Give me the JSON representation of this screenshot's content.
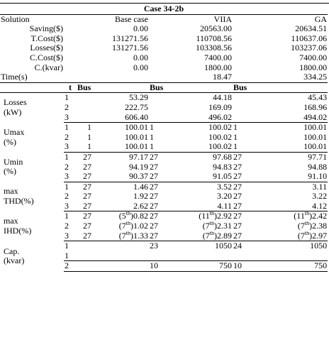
{
  "case_title": "Case 34-2b",
  "summary": {
    "headers": [
      "Solution",
      "Base case",
      "VIIA",
      "GA"
    ],
    "rows": [
      {
        "label": "Saving($)",
        "vals": [
          "0.00",
          "20563.00",
          "20634.51"
        ]
      },
      {
        "label": "T.Cost($)",
        "vals": [
          "131271.56",
          "110708.56",
          "110637.06"
        ]
      },
      {
        "label": "Losses($)",
        "vals": [
          "131271.56",
          "103308.56",
          "103237.06"
        ]
      },
      {
        "label": "C.Cost($)",
        "vals": [
          "0.00",
          "7400.00",
          "7400.00"
        ]
      },
      {
        "label": "C.(kvar)",
        "vals": [
          "0.00",
          "1800.00",
          "1800.00"
        ]
      }
    ],
    "time": {
      "label": "Time(s)",
      "vals": [
        "",
        "18.47",
        "334.25"
      ]
    }
  },
  "detail_headers": {
    "t": "t",
    "bus": "Bus"
  },
  "groups": [
    {
      "label1": "Losses",
      "label2": "(kW)",
      "rows": [
        {
          "t": "1",
          "b1": "",
          "v1": "53.29",
          "b2": "",
          "v2": "44.18",
          "b3": "",
          "v3": "45.43"
        },
        {
          "t": "2",
          "b1": "",
          "v1": "222.75",
          "b2": "",
          "v2": "169.09",
          "b3": "",
          "v3": "168.96"
        },
        {
          "t": "3",
          "b1": "",
          "v1": "606.40",
          "b2": "",
          "v2": "496.02",
          "b3": "",
          "v3": "494.02"
        }
      ]
    },
    {
      "label1": "Umax",
      "label2": "(%)",
      "rows": [
        {
          "t": "1",
          "b1": "1",
          "v1": "100.01",
          "b2": "1",
          "v2": "100.02",
          "b3": "1",
          "v3": "100.01"
        },
        {
          "t": "2",
          "b1": "1",
          "v1": "100.01",
          "b2": "1",
          "v2": "100.02",
          "b3": "1",
          "v3": "100.01"
        },
        {
          "t": "3",
          "b1": "1",
          "v1": "100.01",
          "b2": "1",
          "v2": "100.02",
          "b3": "1",
          "v3": "100.01"
        }
      ]
    },
    {
      "label1": "Umin",
      "label2": "(%)",
      "rows": [
        {
          "t": "1",
          "b1": "27",
          "v1": "97.17",
          "b2": "27",
          "v2": "97.68",
          "b3": "27",
          "v3": "97.71"
        },
        {
          "t": "2",
          "b1": "27",
          "v1": "94.19",
          "b2": "27",
          "v2": "94.83",
          "b3": "27",
          "v3": "94.88"
        },
        {
          "t": "3",
          "b1": "27",
          "v1": "90.37",
          "b2": "27",
          "v2": "91.05",
          "b3": "27",
          "v3": "91.10"
        }
      ]
    },
    {
      "label1": "max",
      "label2": "THD(%)",
      "rows": [
        {
          "t": "1",
          "b1": "27",
          "v1": "1.46",
          "b2": "27",
          "v2": "3.52",
          "b3": "27",
          "v3": "3.11"
        },
        {
          "t": "2",
          "b1": "27",
          "v1": "1.92",
          "b2": "27",
          "v2": "3.20",
          "b3": "27",
          "v3": "3.22"
        },
        {
          "t": "3",
          "b1": "27",
          "v1": "2.62",
          "b2": "27",
          "v2": "4.11",
          "b3": "27",
          "v3": "4.12"
        }
      ]
    },
    {
      "label1": "max",
      "label2": "IHD(%)",
      "rows": [
        {
          "t": "1",
          "b1": "27",
          "h1": [
            "5",
            "0.82"
          ],
          "b2": "27",
          "h2": [
            "11",
            "2.92"
          ],
          "b3": "27",
          "h3": [
            "11",
            "2.42"
          ]
        },
        {
          "t": "2",
          "b1": "27",
          "h1": [
            "7",
            "1.02"
          ],
          "b2": "27",
          "h2": [
            "7",
            "2.31"
          ],
          "b3": "27",
          "h3": [
            "7",
            "2.38"
          ]
        },
        {
          "t": "3",
          "b1": "27",
          "h1": [
            "7",
            "1.33"
          ],
          "b2": "27",
          "h2": [
            "7",
            "2.89"
          ],
          "b3": "27",
          "h3": [
            "7",
            "2.97"
          ]
        }
      ]
    }
  ],
  "cap": {
    "label1": "Cap.",
    "label2": "(kvar)",
    "rows": [
      {
        "t": "1",
        "b1": "",
        "v1": "",
        "b2": "23",
        "v2": "1050",
        "b3": "24",
        "v3": "1050"
      },
      {
        "t": "1",
        "b1": "",
        "v1": "",
        "b2": "",
        "v2": "",
        "b3": "",
        "v3": ""
      },
      {
        "t": "2",
        "b1": "",
        "v1": "",
        "b2": "10",
        "v2": "750",
        "b3": "10",
        "v3": "750"
      }
    ]
  },
  "th_suffix": "th"
}
